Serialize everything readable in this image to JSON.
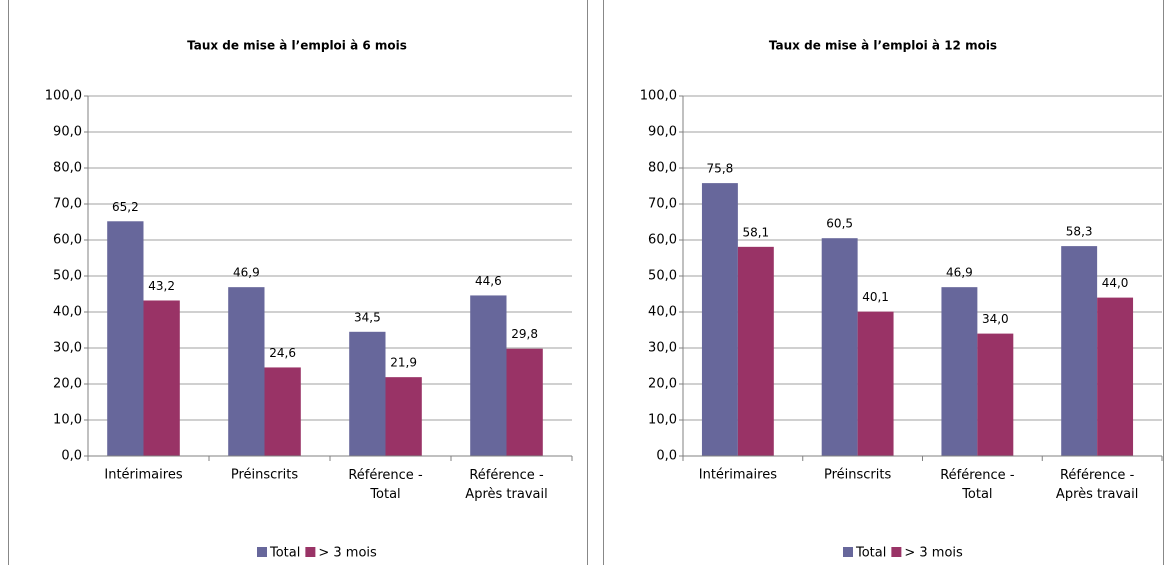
{
  "chart_data": [
    {
      "type": "bar",
      "title": "Taux de mise à l’emploi à 6 mois",
      "categories": [
        "Intérimaires",
        "Préinscrits",
        "Référence - Total",
        "Référence - Après travail"
      ],
      "series": [
        {
          "name": "Total",
          "color": "#67679b",
          "values": [
            65.2,
            46.9,
            34.5,
            44.6
          ],
          "value_labels": [
            "65,2",
            "46,9",
            "34,5",
            "44,6"
          ]
        },
        {
          "name": "> 3 mois",
          "color": "#993366",
          "values": [
            43.2,
            24.6,
            21.9,
            29.8
          ],
          "value_labels": [
            "43,2",
            "24,6",
            "21,9",
            "29,8"
          ]
        }
      ],
      "ylim": [
        0,
        100
      ],
      "yticks": [
        {
          "value": 0,
          "label": "0,0"
        },
        {
          "value": 10,
          "label": "10,0"
        },
        {
          "value": 20,
          "label": "20,0"
        },
        {
          "value": 30,
          "label": "30,0"
        },
        {
          "value": 40,
          "label": "40,0"
        },
        {
          "value": 50,
          "label": "50,0"
        },
        {
          "value": 60,
          "label": "60,0"
        },
        {
          "value": 70,
          "label": "70,0"
        },
        {
          "value": 80,
          "label": "80,0"
        },
        {
          "value": 90,
          "label": "90,0"
        },
        {
          "value": 100,
          "label": "100,0"
        }
      ],
      "grid": true,
      "legend": "bottom"
    },
    {
      "type": "bar",
      "title": "Taux de mise à l’emploi à 12 mois",
      "categories": [
        "Intérimaires",
        "Préinscrits",
        "Référence - Total",
        "Référence - Après travail"
      ],
      "series": [
        {
          "name": "Total",
          "color": "#67679b",
          "values": [
            75.8,
            60.5,
            46.9,
            58.3
          ],
          "value_labels": [
            "75,8",
            "60,5",
            "46,9",
            "58,3"
          ]
        },
        {
          "name": "> 3 mois",
          "color": "#993366",
          "values": [
            58.1,
            40.1,
            34.0,
            44.0
          ],
          "value_labels": [
            "58,1",
            "40,1",
            "34,0",
            "44,0"
          ]
        }
      ],
      "ylim": [
        0,
        100
      ],
      "yticks": [
        {
          "value": 0,
          "label": "0,0"
        },
        {
          "value": 10,
          "label": "10,0"
        },
        {
          "value": 20,
          "label": "20,0"
        },
        {
          "value": 30,
          "label": "30,0"
        },
        {
          "value": 40,
          "label": "40,0"
        },
        {
          "value": 50,
          "label": "50,0"
        },
        {
          "value": 60,
          "label": "60,0"
        },
        {
          "value": 70,
          "label": "70,0"
        },
        {
          "value": 80,
          "label": "80,0"
        },
        {
          "value": 90,
          "label": "90,0"
        },
        {
          "value": 100,
          "label": "100,0"
        }
      ],
      "grid": true,
      "legend": "bottom"
    }
  ]
}
